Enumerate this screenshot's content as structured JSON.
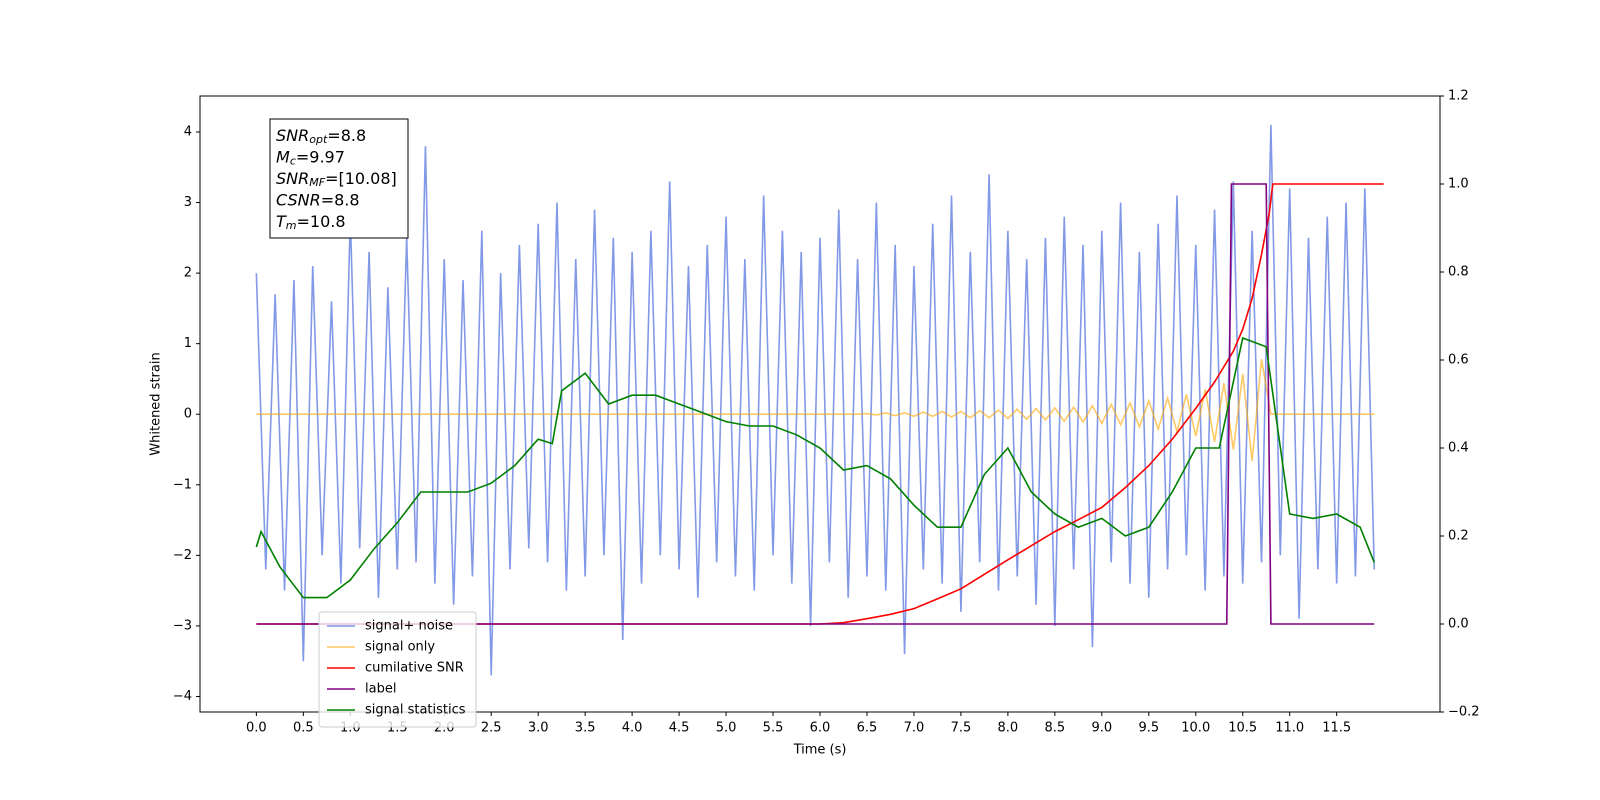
{
  "chart_data": {
    "type": "line",
    "xlabel": "Time (s)",
    "ylabel": "Whitened strain",
    "xlim": [
      -0.6,
      12.6
    ],
    "ylim": [
      -4.22,
      4.51
    ],
    "y2lim": [
      -0.2,
      1.2
    ],
    "xticks": [
      {
        "value": 0,
        "label": "0.0"
      },
      0.5,
      {
        "value": 1,
        "label": "1.0"
      },
      1.5,
      {
        "value": 2,
        "label": "2.0"
      },
      2.5,
      {
        "value": 3,
        "label": "3.0"
      },
      3.5,
      {
        "value": 4,
        "label": "4.0"
      },
      4.5,
      {
        "value": 5,
        "label": "5.0"
      },
      5.5,
      {
        "value": 6,
        "label": "6.0"
      },
      6.5,
      {
        "value": 7,
        "label": "7.0"
      },
      7.5,
      {
        "value": 8,
        "label": "8.0"
      },
      8.5,
      {
        "value": 9,
        "label": "9.0"
      },
      9.5,
      {
        "value": 10,
        "label": "10.0"
      },
      10.5,
      {
        "value": 11,
        "label": "11.0"
      },
      11.5
    ],
    "yticks": [
      {
        "value": -4,
        "label": "−4"
      },
      {
        "value": -3,
        "label": "−3"
      },
      {
        "value": -2,
        "label": "−2"
      },
      {
        "value": -1,
        "label": "−1"
      },
      0,
      1,
      2,
      3,
      4
    ],
    "y2ticks": [
      {
        "value": -0.2,
        "label": "−0.2"
      },
      {
        "value": 0,
        "label": "0.0"
      },
      0.2,
      0.4,
      0.6,
      0.8,
      {
        "value": 1,
        "label": "1.0"
      },
      1.2
    ],
    "legend": "lower left",
    "annotation": [
      {
        "name": "SNR",
        "sub": "opt",
        "text": "=8.8"
      },
      {
        "name": "M",
        "sub": "c",
        "text": "=9.97"
      },
      {
        "name": "SNR",
        "sub": "MF",
        "text": "=[10.08]"
      },
      {
        "name": "CSNR",
        "text": "=8.8"
      },
      {
        "name": "T",
        "sub": "m",
        "text": "=10.8"
      }
    ],
    "series": [
      {
        "name": "signal+ noise",
        "color": "#7b93e6",
        "x": [
          0,
          0.1,
          0.2,
          0.3,
          0.4,
          0.5,
          0.6,
          0.7,
          0.8,
          0.9,
          1,
          1.1,
          1.2,
          1.3,
          1.4,
          1.5,
          1.6,
          1.7,
          1.8,
          1.9,
          2,
          2.1,
          2.2,
          2.3,
          2.4,
          2.5,
          2.6,
          2.7,
          2.8,
          2.9,
          3,
          3.1,
          3.2,
          3.3,
          3.4,
          3.5,
          3.6,
          3.7,
          3.8,
          3.9,
          4,
          4.1,
          4.2,
          4.3,
          4.4,
          4.5,
          4.6,
          4.7,
          4.8,
          4.9,
          5,
          5.1,
          5.2,
          5.3,
          5.4,
          5.5,
          5.6,
          5.7,
          5.8,
          5.9,
          6,
          6.1,
          6.2,
          6.3,
          6.4,
          6.5,
          6.6,
          6.7,
          6.8,
          6.9,
          7,
          7.1,
          7.2,
          7.3,
          7.4,
          7.5,
          7.6,
          7.7,
          7.8,
          7.9,
          8,
          8.1,
          8.2,
          8.3,
          8.4,
          8.5,
          8.6,
          8.7,
          8.8,
          8.9,
          9,
          9.1,
          9.2,
          9.3,
          9.4,
          9.5,
          9.6,
          9.7,
          9.8,
          9.9,
          10,
          10.1,
          10.2,
          10.3,
          10.4,
          10.5,
          10.6,
          10.7,
          10.8,
          10.9,
          11,
          11.1,
          11.2,
          11.3,
          11.4,
          11.5,
          11.6,
          11.7,
          11.8,
          11.9
        ],
        "values": [
          2.0,
          -2.2,
          1.7,
          -2.5,
          1.9,
          -3.5,
          2.1,
          -2.0,
          1.6,
          -2.4,
          2.8,
          -1.9,
          2.3,
          -2.6,
          1.8,
          -2.2,
          2.5,
          -2.1,
          3.8,
          -2.4,
          2.2,
          -2.7,
          1.9,
          -2.3,
          2.6,
          -3.7,
          2.0,
          -2.2,
          2.4,
          -1.9,
          2.7,
          -2.1,
          3.0,
          -2.5,
          2.2,
          -2.3,
          2.9,
          -2.0,
          2.5,
          -3.2,
          2.3,
          -2.4,
          2.6,
          -2.0,
          3.3,
          -2.2,
          2.1,
          -2.6,
          2.4,
          -2.1,
          2.8,
          -2.3,
          2.2,
          -2.5,
          3.1,
          -2.0,
          2.6,
          -2.4,
          2.3,
          -3.0,
          2.5,
          -2.1,
          2.9,
          -2.6,
          2.2,
          -2.3,
          3.0,
          -2.5,
          2.4,
          -3.4,
          2.1,
          -2.2,
          2.7,
          -2.4,
          3.1,
          -2.8,
          2.3,
          -2.1,
          3.4,
          -2.5,
          2.6,
          -2.3,
          2.2,
          -2.7,
          2.5,
          -3.0,
          2.8,
          -2.2,
          2.4,
          -3.3,
          2.6,
          -2.1,
          3.0,
          -2.4,
          2.3,
          -2.6,
          2.7,
          -2.2,
          3.1,
          -2.0,
          2.4,
          -2.5,
          2.9,
          -2.3,
          3.3,
          -2.4,
          2.6,
          -2.1,
          4.1,
          -2.0,
          3.2,
          -2.9,
          2.5,
          -2.2,
          2.8,
          -2.4,
          3.0,
          -2.3,
          3.2,
          -2.2
        ]
      },
      {
        "name": "signal only",
        "color": "#ffa500",
        "x": [
          0,
          0.1,
          0.2,
          0.3,
          0.4,
          0.5,
          0.6,
          0.7,
          0.8,
          0.9,
          1,
          1.1,
          1.2,
          1.3,
          1.4,
          1.5,
          1.6,
          1.7,
          1.8,
          1.9,
          2,
          2.1,
          2.2,
          2.3,
          2.4,
          2.5,
          2.6,
          2.7,
          2.8,
          2.9,
          3,
          3.1,
          3.2,
          3.3,
          3.4,
          3.5,
          3.6,
          3.7,
          3.8,
          3.9,
          4,
          4.1,
          4.2,
          4.3,
          4.4,
          4.5,
          4.6,
          4.7,
          4.8,
          4.9,
          5,
          5.1,
          5.2,
          5.3,
          5.4,
          5.5,
          5.6,
          5.7,
          5.8,
          5.9,
          6,
          6.1,
          6.2,
          6.3,
          6.4,
          6.5,
          6.6,
          6.7,
          6.8,
          6.9,
          7,
          7.1,
          7.2,
          7.3,
          7.4,
          7.5,
          7.6,
          7.7,
          7.8,
          7.9,
          8,
          8.1,
          8.2,
          8.3,
          8.4,
          8.5,
          8.6,
          8.7,
          8.8,
          8.9,
          9,
          9.1,
          9.2,
          9.3,
          9.4,
          9.5,
          9.6,
          9.7,
          9.8,
          9.9,
          10,
          10.1,
          10.2,
          10.3,
          10.4,
          10.5,
          10.6,
          10.7,
          10.8,
          10.9,
          11,
          11.1,
          11.2,
          11.3,
          11.4,
          11.5,
          11.6,
          11.7,
          11.8,
          11.9
        ],
        "values": [
          0,
          0,
          0,
          0,
          0,
          0,
          0,
          0,
          0,
          0,
          0,
          0,
          0,
          0,
          0,
          0,
          0,
          0,
          0,
          0,
          0,
          0,
          0,
          0,
          0,
          0,
          0,
          0,
          0,
          0,
          0,
          0,
          0,
          0,
          0,
          0,
          0,
          0,
          0,
          0,
          0,
          0,
          0,
          0,
          0,
          0,
          0,
          0,
          0,
          0,
          0,
          0,
          0,
          0,
          0,
          0,
          0,
          0,
          0,
          0,
          0,
          0,
          0,
          0,
          0,
          0.01,
          -0.01,
          0.02,
          -0.02,
          0.02,
          -0.03,
          0.03,
          -0.03,
          0.04,
          -0.04,
          0.04,
          -0.05,
          0.05,
          -0.05,
          0.06,
          -0.06,
          0.07,
          -0.07,
          0.08,
          -0.08,
          0.09,
          -0.1,
          0.1,
          -0.11,
          0.12,
          -0.13,
          0.14,
          -0.15,
          0.16,
          -0.18,
          0.19,
          -0.21,
          0.23,
          -0.25,
          0.28,
          -0.31,
          0.35,
          -0.39,
          0.44,
          -0.5,
          0.57,
          -0.66,
          0.78,
          0,
          0,
          0,
          0,
          0,
          0,
          0,
          0,
          0,
          0,
          0,
          0
        ]
      },
      {
        "name": "cumilative SNR",
        "color": "#ff0000",
        "axis": "y2",
        "x": [
          0,
          6,
          6.25,
          6.5,
          6.75,
          7,
          7.25,
          7.5,
          7.75,
          8,
          8.25,
          8.5,
          8.75,
          9,
          9.25,
          9.5,
          9.75,
          10,
          10.2,
          10.4,
          10.5,
          10.6,
          10.7,
          10.78,
          10.82,
          12
        ],
        "values": [
          0,
          0,
          0.003,
          0.012,
          0.022,
          0.035,
          0.057,
          0.08,
          0.113,
          0.146,
          0.178,
          0.21,
          0.237,
          0.265,
          0.31,
          0.36,
          0.42,
          0.49,
          0.55,
          0.62,
          0.67,
          0.74,
          0.84,
          0.93,
          1,
          1
        ]
      },
      {
        "name": "label",
        "color": "#800080",
        "axis": "y2",
        "x": [
          0,
          10.33,
          10.38,
          10.75,
          10.8,
          11.9
        ],
        "values": [
          0,
          0,
          1,
          1,
          0,
          0
        ]
      },
      {
        "name": "signal statistics",
        "color": "#008000",
        "axis": "y2",
        "x": [
          0,
          0.05,
          0.25,
          0.5,
          0.75,
          1,
          1.25,
          1.5,
          1.75,
          2,
          2.25,
          2.5,
          2.75,
          3,
          3.15,
          3.25,
          3.5,
          3.75,
          4,
          4.25,
          4.5,
          4.75,
          5,
          5.25,
          5.5,
          5.75,
          6,
          6.25,
          6.5,
          6.75,
          7,
          7.25,
          7.5,
          7.75,
          8,
          8.25,
          8.5,
          8.75,
          9,
          9.25,
          9.5,
          9.75,
          10,
          10.25,
          10.5,
          10.75,
          11,
          11.25,
          11.5,
          11.75,
          11.9
        ],
        "values": [
          0.175,
          0.21,
          0.13,
          0.06,
          0.06,
          0.1,
          0.17,
          0.23,
          0.3,
          0.3,
          0.3,
          0.32,
          0.36,
          0.42,
          0.41,
          0.53,
          0.57,
          0.5,
          0.52,
          0.52,
          0.5,
          0.48,
          0.46,
          0.45,
          0.45,
          0.43,
          0.4,
          0.35,
          0.36,
          0.33,
          0.27,
          0.22,
          0.22,
          0.34,
          0.4,
          0.3,
          0.25,
          0.22,
          0.24,
          0.2,
          0.22,
          0.3,
          0.4,
          0.4,
          0.65,
          0.63,
          0.25,
          0.24,
          0.25,
          0.22,
          0.14
        ]
      }
    ]
  }
}
